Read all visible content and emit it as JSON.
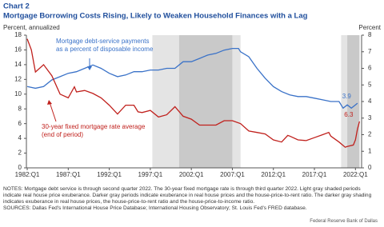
{
  "chart_data": {
    "type": "line",
    "label": "Chart 2",
    "title": "Mortgage Borrowing Costs Rising, Likely to Weaken Household Finances with a Lag",
    "ylabel": "Percent, annualized",
    "y2label": "Percent",
    "xlim": [
      1981.9,
      2022.75
    ],
    "xticks": [
      {
        "value": 1982,
        "label": "1982:Q1"
      },
      {
        "value": 1987,
        "label": "1987:Q1"
      },
      {
        "value": 1992,
        "label": "1992:Q1"
      },
      {
        "value": 1997,
        "label": "1997:Q1"
      },
      {
        "value": 2002,
        "label": "2002:Q1"
      },
      {
        "value": 2007,
        "label": "2007:Q1"
      },
      {
        "value": 2012,
        "label": "2012:Q1"
      },
      {
        "value": 2017,
        "label": "2017:Q1"
      },
      {
        "value": 2022,
        "label": "2022:Q1"
      }
    ],
    "ylim": [
      0,
      18
    ],
    "yticks": [
      0,
      2,
      4,
      6,
      8,
      10,
      12,
      14,
      16,
      18
    ],
    "y2lim": [
      0,
      8
    ],
    "y2ticks": [
      0,
      1,
      2,
      3,
      4,
      5,
      6,
      7,
      8
    ],
    "shade_colors": {
      "light": "#e4e4e4",
      "dark": "#c9c9c9"
    },
    "shading": [
      {
        "start": 1997.25,
        "end": 2000.5,
        "shade": "light"
      },
      {
        "start": 2000.5,
        "end": 2007.0,
        "shade": "dark"
      },
      {
        "start": 2007.0,
        "end": 2008.0,
        "shade": "light"
      },
      {
        "start": 2020.25,
        "end": 2021.0,
        "shade": "light"
      },
      {
        "start": 2021.0,
        "end": 2022.5,
        "shade": "dark"
      }
    ],
    "series": [
      {
        "color": "#3a72c8",
        "axis": "y2",
        "x": [
          1982,
          1983,
          1984,
          1985,
          1986,
          1987,
          1988,
          1989,
          1990,
          1991,
          1992,
          1993,
          1994,
          1995,
          1996,
          1997,
          1998,
          1999,
          2000,
          2001,
          2002,
          2003,
          2004,
          2005,
          2006,
          2007,
          2007.75,
          2008,
          2009,
          2010,
          2011,
          2012,
          2013,
          2014,
          2015,
          2016,
          2017,
          2018,
          2019,
          2020,
          2020.5,
          2021,
          2021.5,
          2022,
          2022.25
        ],
        "values": [
          4.9,
          4.8,
          4.9,
          5.3,
          5.5,
          5.7,
          5.8,
          6.0,
          6.2,
          6.0,
          5.7,
          5.5,
          5.6,
          5.8,
          5.8,
          5.9,
          5.9,
          6.0,
          6.0,
          6.4,
          6.4,
          6.6,
          6.8,
          6.9,
          7.1,
          7.2,
          7.2,
          7.0,
          6.7,
          6.0,
          5.4,
          4.9,
          4.6,
          4.4,
          4.3,
          4.3,
          4.2,
          4.1,
          4.0,
          4.0,
          3.6,
          3.8,
          3.6,
          3.8,
          3.9
        ]
      },
      {
        "color": "#c0201c",
        "x": [
          1982,
          1982.5,
          1983,
          1984,
          1985,
          1986,
          1987,
          1987.75,
          1988,
          1989,
          1990,
          1991,
          1992,
          1993,
          1994,
          1995,
          1995.5,
          1996,
          1997,
          1998,
          1999,
          2000,
          2001,
          2002,
          2003,
          2004,
          2005,
          2006,
          2007,
          2008,
          2009,
          2010,
          2011,
          2012,
          2013,
          2013.75,
          2014,
          2015,
          2016,
          2017,
          2018,
          2018.75,
          2019,
          2020,
          2020.75,
          2021,
          2021.75,
          2022,
          2022.25,
          2022.5
        ],
        "values": [
          17.5,
          16.0,
          13.0,
          14.0,
          12.5,
          10.0,
          9.5,
          11.0,
          10.3,
          10.5,
          10.1,
          9.5,
          8.5,
          7.3,
          8.5,
          8.5,
          7.6,
          7.5,
          7.8,
          6.9,
          7.2,
          8.3,
          7.0,
          6.6,
          5.8,
          5.8,
          5.8,
          6.4,
          6.4,
          6.0,
          5.0,
          4.8,
          4.6,
          3.8,
          3.5,
          4.4,
          4.3,
          3.8,
          3.7,
          4.1,
          4.5,
          4.8,
          4.3,
          3.5,
          2.8,
          2.9,
          3.1,
          3.8,
          5.3,
          6.3
        ]
      }
    ],
    "annotations": [
      {
        "lines": [
          "Mortgage debt-service payments",
          "as a percent of disposable income"
        ]
      },
      {
        "lines": [
          "30-year fixed mortgage rate average",
          "(end of period)"
        ]
      }
    ]
  },
  "notes": "NOTES: Mortgage debt service is through second quarter 2022. The 30-year fixed mortgage rate is through third quarter 2022. Light gray shaded periods indicate real house price exuberance. Darker gray periods indicate exuberance in real house prices and the house-price-to-rent ratio. The darker gray shading indicates exuberance in real house prices, the house-price-to-rent ratio and the house-price-to-income ratio.",
  "sources": "SOURCES: Dallas Fed's International House Price Database; International Housing Observatory; St. Louis Fed's FRED database.",
  "footer": "Federal Reserve Bank of Dallas"
}
